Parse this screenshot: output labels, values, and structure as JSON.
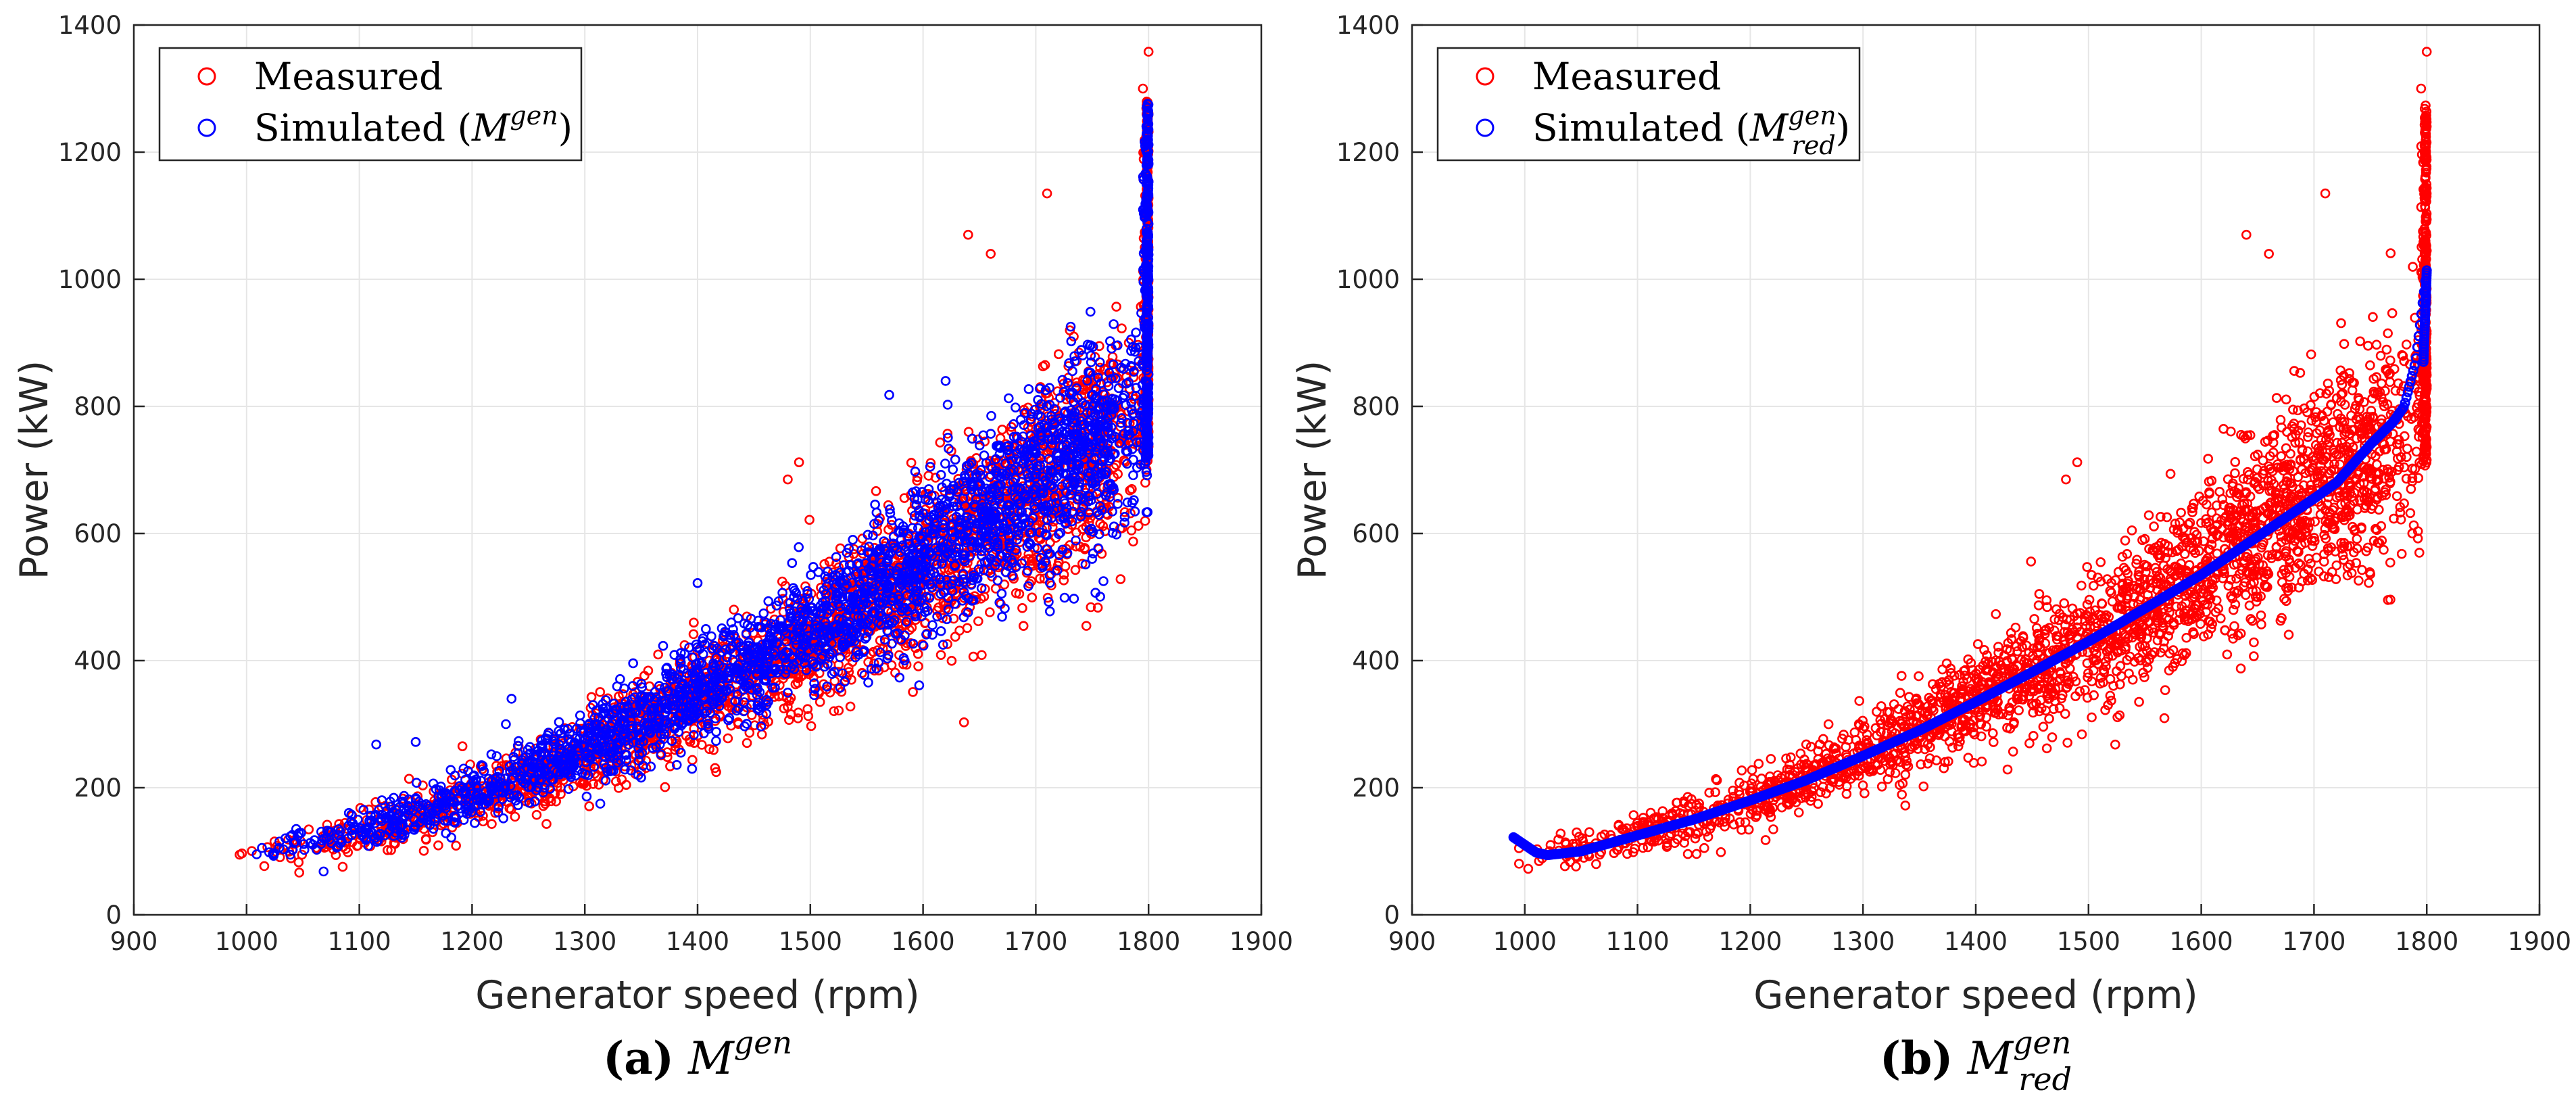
{
  "chart_data": [
    {
      "type": "scatter",
      "caption_label": "(a)",
      "caption_symbol": "M",
      "caption_sup": "gen",
      "caption_sub": "",
      "xlabel": "Generator speed (rpm)",
      "ylabel": "Power (kW)",
      "xlim": [
        900,
        1900
      ],
      "ylim": [
        0,
        1400
      ],
      "xticks": [
        900,
        1000,
        1100,
        1200,
        1300,
        1400,
        1500,
        1600,
        1700,
        1800,
        1900
      ],
      "yticks": [
        0,
        200,
        400,
        600,
        800,
        1000,
        1200,
        1400
      ],
      "grid": true,
      "legend_position": "top-left",
      "series": [
        {
          "name": "Measured",
          "color": "#ff0000",
          "marker": "circle",
          "trend": [
            [
              990,
              82
            ],
            [
              1050,
              105
            ],
            [
              1100,
              128
            ],
            [
              1150,
              150
            ],
            [
              1200,
              182
            ],
            [
              1250,
              215
            ],
            [
              1300,
              255
            ],
            [
              1350,
              295
            ],
            [
              1400,
              338
            ],
            [
              1450,
              385
            ],
            [
              1500,
              432
            ],
            [
              1550,
              485
            ],
            [
              1600,
              540
            ],
            [
              1650,
              605
            ],
            [
              1700,
              670
            ],
            [
              1750,
              725
            ],
            [
              1780,
              760
            ],
            [
              1800,
              800
            ]
          ],
          "spread_base": 12,
          "spread_gain": 0.11,
          "outliers": [
            [
              1480,
              685
            ],
            [
              1490,
              712
            ],
            [
              1640,
              1070
            ],
            [
              1660,
              1040
            ],
            [
              1710,
              1135
            ],
            [
              1800,
              1358
            ],
            [
              1795,
              1300
            ]
          ]
        },
        {
          "name": "Simulated",
          "legend_symbol": "M",
          "legend_sup": "gen",
          "legend_sub": "",
          "color": "#0000ff",
          "marker": "circle",
          "trend": [
            [
              990,
              88
            ],
            [
              1050,
              110
            ],
            [
              1100,
              132
            ],
            [
              1150,
              157
            ],
            [
              1200,
              190
            ],
            [
              1250,
              225
            ],
            [
              1300,
              265
            ],
            [
              1350,
              307
            ],
            [
              1400,
              352
            ],
            [
              1450,
              398
            ],
            [
              1500,
              447
            ],
            [
              1550,
              500
            ],
            [
              1600,
              556
            ],
            [
              1650,
              620
            ],
            [
              1700,
              685
            ],
            [
              1750,
              740
            ],
            [
              1780,
              780
            ],
            [
              1800,
              820
            ]
          ],
          "spread_base": 10,
          "spread_gain": 0.1,
          "outliers": [
            [
              1115,
              268
            ],
            [
              1150,
              272
            ],
            [
              1230,
              300
            ],
            [
              1235,
              340
            ],
            [
              1400,
              522
            ],
            [
              1570,
              818
            ],
            [
              1620,
              840
            ],
            [
              1760,
              525
            ],
            [
              1750,
              560
            ]
          ]
        }
      ]
    },
    {
      "type": "scatter",
      "caption_label": "(b)",
      "caption_symbol": "M",
      "caption_sup": "gen",
      "caption_sub": "red",
      "xlabel": "Generator speed (rpm)",
      "ylabel": "Power (kW)",
      "xlim": [
        900,
        1900
      ],
      "ylim": [
        0,
        1400
      ],
      "xticks": [
        900,
        1000,
        1100,
        1200,
        1300,
        1400,
        1500,
        1600,
        1700,
        1800,
        1900
      ],
      "yticks": [
        0,
        200,
        400,
        600,
        800,
        1000,
        1200,
        1400
      ],
      "grid": true,
      "legend_position": "top-left",
      "series": [
        {
          "name": "Measured",
          "color": "#ff0000",
          "marker": "circle",
          "trend": [
            [
              990,
              82
            ],
            [
              1050,
              105
            ],
            [
              1100,
              128
            ],
            [
              1150,
              150
            ],
            [
              1200,
              182
            ],
            [
              1250,
              215
            ],
            [
              1300,
              255
            ],
            [
              1350,
              295
            ],
            [
              1400,
              338
            ],
            [
              1450,
              385
            ],
            [
              1500,
              432
            ],
            [
              1550,
              485
            ],
            [
              1600,
              540
            ],
            [
              1650,
              605
            ],
            [
              1700,
              670
            ],
            [
              1750,
              725
            ],
            [
              1780,
              760
            ],
            [
              1800,
              800
            ]
          ],
          "spread_base": 12,
          "spread_gain": 0.11,
          "outliers": [
            [
              1480,
              685
            ],
            [
              1490,
              712
            ],
            [
              1640,
              1070
            ],
            [
              1660,
              1040
            ],
            [
              1710,
              1135
            ],
            [
              1800,
              1358
            ],
            [
              1795,
              1300
            ]
          ]
        },
        {
          "name": "Simulated",
          "legend_symbol": "M",
          "legend_sup": "gen",
          "legend_sub": "red",
          "color": "#0000ff",
          "marker": "circle",
          "trend": [
            [
              990,
              122
            ],
            [
              1000,
              110
            ],
            [
              1010,
              98
            ],
            [
              1020,
              94
            ],
            [
              1050,
              100
            ],
            [
              1100,
              125
            ],
            [
              1150,
              150
            ],
            [
              1200,
              180
            ],
            [
              1250,
              212
            ],
            [
              1300,
              250
            ],
            [
              1350,
              290
            ],
            [
              1400,
              335
            ],
            [
              1450,
              382
            ],
            [
              1500,
              430
            ],
            [
              1550,
              482
            ],
            [
              1600,
              535
            ],
            [
              1650,
              595
            ],
            [
              1700,
              655
            ],
            [
              1720,
              680
            ],
            [
              1750,
              740
            ],
            [
              1770,
              775
            ],
            [
              1780,
              800
            ],
            [
              1790,
              870
            ],
            [
              1800,
              1015
            ]
          ],
          "spread_base": 0,
          "spread_gain": 0,
          "outliers": []
        }
      ]
    }
  ]
}
